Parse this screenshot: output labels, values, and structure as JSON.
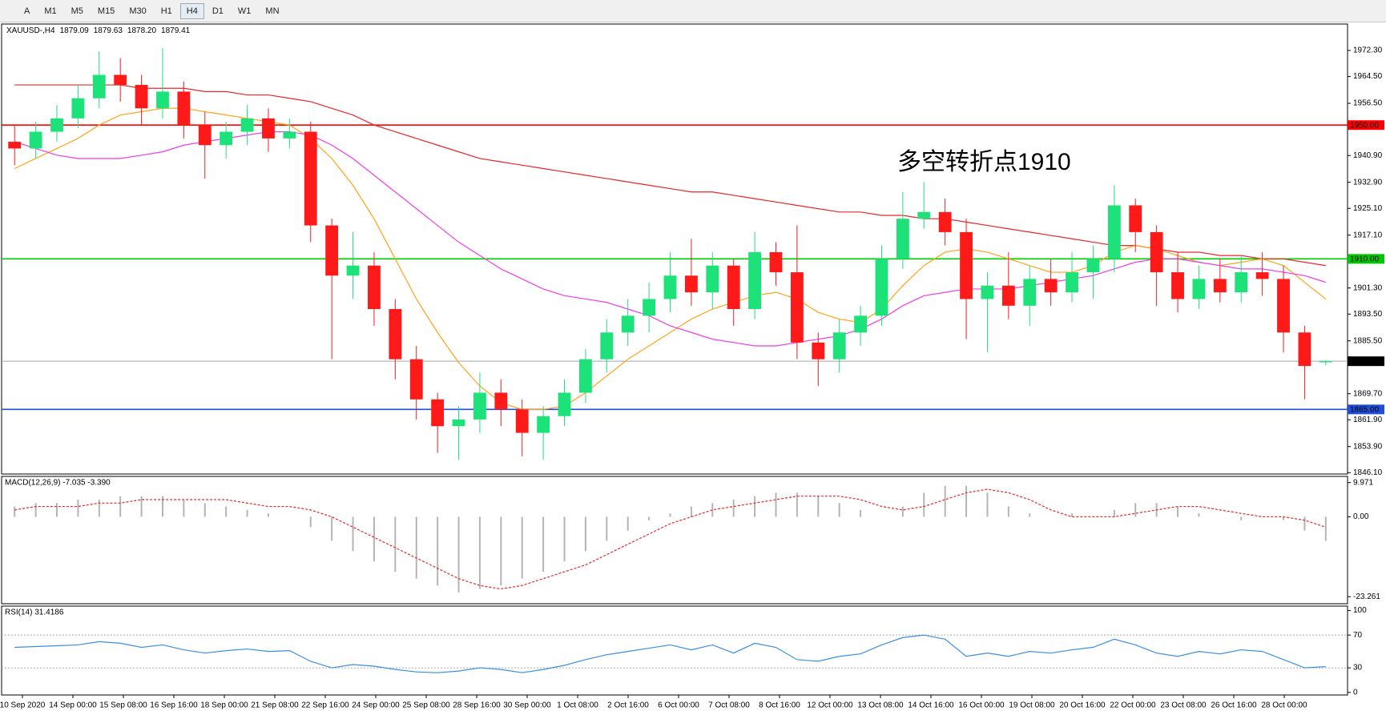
{
  "toolbar": {
    "buttons": [
      "A",
      "M1",
      "M5",
      "M15",
      "M30",
      "H1",
      "H4",
      "D1",
      "W1",
      "MN"
    ]
  },
  "time_axis": {
    "labels": [
      "10 Sep 2020",
      "14 Sep 00:00",
      "15 Sep 08:00",
      "16 Sep 16:00",
      "18 Sep 00:00",
      "21 Sep 08:00",
      "22 Sep 16:00",
      "24 Sep 00:00",
      "25 Sep 08:00",
      "28 Sep 16:00",
      "30 Sep 00:00",
      "1 Oct 08:00",
      "2 Oct 16:00",
      "6 Oct 00:00",
      "7 Oct 08:00",
      "8 Oct 16:00",
      "12 Oct 00:00",
      "13 Oct 08:00",
      "14 Oct 16:00",
      "16 Oct 00:00",
      "19 Oct 08:00",
      "20 Oct 16:00",
      "22 Oct 00:00",
      "23 Oct 08:00",
      "26 Oct 16:00",
      "28 Oct 00:00"
    ]
  },
  "chart_data": [
    {
      "type": "candlestick",
      "title": "XAUUSD-,H4",
      "header_values": [
        {
          "value": 1879.09,
          "label": "1879.09"
        },
        {
          "value": 1879.63,
          "label": "1879.63"
        },
        {
          "value": 1878.2,
          "label": "1878.20"
        },
        {
          "value": 1879.41,
          "label": "1879.41"
        }
      ],
      "annotation": "多空转折点1910",
      "annotation_color": "#e8262a",
      "up_color": "#1de27a",
      "down_color": "#ff1a1a",
      "open": [
        1945,
        1943,
        1948,
        1952,
        1958,
        1965,
        1962,
        1955,
        1960,
        1950,
        1944,
        1948,
        1952,
        1946,
        1948,
        1920,
        1905,
        1908,
        1895,
        1880,
        1868,
        1860,
        1862,
        1870,
        1865,
        1858,
        1863,
        1870,
        1880,
        1888,
        1893,
        1898,
        1905,
        1900,
        1908,
        1895,
        1912,
        1906,
        1885,
        1880,
        1888,
        1893,
        1910,
        1922,
        1924,
        1918,
        1898,
        1902,
        1896,
        1904,
        1900,
        1906,
        1910,
        1926,
        1918,
        1906,
        1898,
        1904,
        1900,
        1906,
        1904,
        1888,
        1879.09
      ],
      "high": [
        1950,
        1951,
        1956,
        1962,
        1972,
        1970,
        1965,
        1973,
        1963,
        1954,
        1951,
        1956,
        1955,
        1952,
        1951,
        1922,
        1918,
        1912,
        1898,
        1884,
        1870,
        1866,
        1876,
        1874,
        1868,
        1866,
        1874,
        1883,
        1892,
        1898,
        1903,
        1912,
        1916,
        1912,
        1910,
        1918,
        1915,
        1920,
        1888,
        1892,
        1896,
        1914,
        1930,
        1933,
        1928,
        1922,
        1906,
        1912,
        1908,
        1910,
        1912,
        1914,
        1932,
        1928,
        1920,
        1912,
        1908,
        1910,
        1911,
        1912,
        1908,
        1890,
        1879.63
      ],
      "low": [
        1938,
        1940,
        1945,
        1949,
        1955,
        1957,
        1950,
        1952,
        1946,
        1934,
        1940,
        1944,
        1942,
        1943,
        1915,
        1880,
        1898,
        1890,
        1874,
        1862,
        1852,
        1850,
        1858,
        1860,
        1851,
        1850,
        1860,
        1867,
        1876,
        1884,
        1888,
        1894,
        1896,
        1895,
        1890,
        1892,
        1902,
        1880,
        1872,
        1876,
        1884,
        1890,
        1907,
        1919,
        1914,
        1886,
        1882,
        1892,
        1890,
        1896,
        1897,
        1898,
        1906,
        1912,
        1896,
        1894,
        1895,
        1897,
        1897,
        1899,
        1882,
        1868,
        1878.2
      ],
      "close": [
        1943,
        1948,
        1952,
        1958,
        1965,
        1962,
        1955,
        1960,
        1950,
        1944,
        1948,
        1952,
        1946,
        1948,
        1920,
        1905,
        1908,
        1895,
        1880,
        1868,
        1860,
        1862,
        1870,
        1865,
        1858,
        1863,
        1870,
        1880,
        1888,
        1893,
        1898,
        1905,
        1900,
        1908,
        1895,
        1912,
        1906,
        1885,
        1880,
        1888,
        1893,
        1910,
        1922,
        1924,
        1918,
        1898,
        1902,
        1896,
        1904,
        1900,
        1906,
        1910,
        1926,
        1918,
        1906,
        1898,
        1904,
        1900,
        1906,
        1904,
        1888,
        1878,
        1879.41
      ],
      "moving_averages": [
        {
          "color": "#e8262a",
          "values": [
            1962,
            1962,
            1962,
            1962,
            1962,
            1962,
            1961,
            1961,
            1961,
            1960,
            1960,
            1959,
            1959,
            1958,
            1957,
            1955,
            1953,
            1950,
            1948,
            1946,
            1944,
            1942,
            1940,
            1939,
            1938,
            1937,
            1936,
            1935,
            1934,
            1933,
            1932,
            1931,
            1930,
            1930,
            1929,
            1928,
            1927,
            1926,
            1925,
            1924,
            1924,
            1923,
            1923,
            1922,
            1922,
            1921,
            1920,
            1919,
            1918,
            1917,
            1916,
            1915,
            1914,
            1914,
            1913,
            1912,
            1912,
            1911,
            1911,
            1910,
            1910,
            1909,
            1908
          ]
        },
        {
          "color": "#ffa31a",
          "values": [
            1937,
            1940,
            1943,
            1946,
            1950,
            1953,
            1954,
            1955,
            1955,
            1954,
            1953,
            1952,
            1951,
            1950,
            1946,
            1940,
            1932,
            1922,
            1910,
            1898,
            1888,
            1879,
            1872,
            1867,
            1865,
            1865,
            1866,
            1870,
            1875,
            1880,
            1884,
            1888,
            1892,
            1895,
            1897,
            1899,
            1900,
            1898,
            1894,
            1892,
            1891,
            1895,
            1902,
            1908,
            1912,
            1913,
            1912,
            1910,
            1908,
            1906,
            1906,
            1908,
            1912,
            1914,
            1913,
            1911,
            1909,
            1908,
            1909,
            1910,
            1908,
            1903,
            1898
          ]
        },
        {
          "color": "#ee3ee6",
          "values": [
            1945,
            1943,
            1941,
            1940,
            1940,
            1940,
            1941,
            1942,
            1944,
            1945,
            1946,
            1947,
            1948,
            1948,
            1947,
            1944,
            1940,
            1935,
            1930,
            1925,
            1920,
            1915,
            1911,
            1907,
            1904,
            1901,
            1899,
            1898,
            1897,
            1895,
            1893,
            1890,
            1888,
            1886,
            1885,
            1884,
            1884,
            1885,
            1886,
            1887,
            1889,
            1892,
            1896,
            1899,
            1900,
            1901,
            1901,
            1901,
            1902,
            1903,
            1904,
            1905,
            1907,
            1909,
            1910,
            1910,
            1909,
            1908,
            1907,
            1907,
            1906,
            1905,
            1903
          ]
        }
      ],
      "levels": [
        {
          "value": 1950,
          "label": "1950.00",
          "color": "#ff0000",
          "text_color": "#ffffff"
        },
        {
          "value": 1910,
          "label": "1910.00",
          "color": "#00c800",
          "text_color": "#000000"
        },
        {
          "value": 1865,
          "label": "1865.00",
          "color": "#1f4fd8",
          "text_color": "#ffffff"
        },
        {
          "value": 1879.41,
          "label": "1879.41",
          "color": "#a0a8b0",
          "text_color": "#ffffff"
        }
      ],
      "ylim": [
        1845.7,
        1980.2
      ],
      "yticks": [
        {
          "value": 1972.3,
          "label": "1972.30"
        },
        {
          "value": 1964.5,
          "label": "1964.50"
        },
        {
          "value": 1956.5,
          "label": "1956.50"
        },
        {
          "value": 1940.9,
          "label": "1940.90"
        },
        {
          "value": 1932.9,
          "label": "1932.90"
        },
        {
          "value": 1925.1,
          "label": "1925.10"
        },
        {
          "value": 1917.1,
          "label": "1917.10"
        },
        {
          "value": 1901.3,
          "label": "1901.30"
        },
        {
          "value": 1893.5,
          "label": "1893.50"
        },
        {
          "value": 1885.5,
          "label": "1885.50"
        },
        {
          "value": 1869.7,
          "label": "1869.70"
        },
        {
          "value": 1861.9,
          "label": "1861.90"
        },
        {
          "value": 1853.9,
          "label": "1853.90"
        },
        {
          "value": 1846.1,
          "label": "1846.10"
        }
      ]
    },
    {
      "type": "macd",
      "title": "MACD(12,26,9) -7.035 -3.390",
      "color": "#b4b4b4",
      "signal_color": "#e8262a",
      "histogram": [
        3,
        4,
        4,
        5,
        5,
        6,
        6,
        6,
        5,
        4,
        3,
        2,
        1,
        0,
        -3,
        -7,
        -10,
        -13,
        -16,
        -18,
        -20,
        -22,
        -21,
        -20,
        -18,
        -16,
        -13,
        -10,
        -7,
        -4,
        -1,
        1,
        3,
        4,
        5,
        6,
        7,
        7,
        6,
        4,
        2,
        0,
        3,
        7,
        9,
        9,
        7,
        3,
        1,
        0,
        1,
        0,
        2,
        4,
        4,
        3,
        1,
        0,
        -1,
        0,
        -1,
        -4,
        -7
      ],
      "signal": [
        2,
        3,
        3,
        3,
        4,
        4,
        5,
        5,
        5,
        5,
        5,
        4,
        3,
        3,
        2,
        0,
        -3,
        -6,
        -9,
        -12,
        -15,
        -18,
        -20,
        -21,
        -20,
        -18,
        -16,
        -14,
        -11,
        -8,
        -5,
        -2,
        0,
        2,
        3,
        4,
        5,
        6,
        6,
        6,
        5,
        3,
        2,
        3,
        5,
        7,
        8,
        7,
        5,
        2,
        0,
        0,
        0,
        1,
        2,
        3,
        3,
        2,
        1,
        0,
        0,
        -1,
        -3
      ],
      "ylim": [
        -25.3,
        11.76
      ],
      "yticks": [
        9.971,
        {
          "value": 0,
          "label": "0.00"
        },
        -23.261
      ]
    },
    {
      "type": "rsi",
      "title": "RSI(14) 31.4186",
      "color": "#3a8ee6",
      "values": [
        55,
        56,
        57,
        58,
        62,
        60,
        55,
        58,
        52,
        48,
        51,
        53,
        50,
        51,
        38,
        30,
        34,
        32,
        28,
        25,
        24,
        26,
        30,
        28,
        24,
        28,
        33,
        40,
        46,
        50,
        54,
        58,
        52,
        58,
        48,
        60,
        55,
        40,
        38,
        44,
        47,
        58,
        67,
        70,
        65,
        44,
        48,
        44,
        50,
        48,
        52,
        55,
        65,
        58,
        48,
        44,
        50,
        47,
        52,
        50,
        40,
        30,
        31.4186
      ],
      "levels": [
        70,
        30
      ],
      "ylim": [
        -3.2,
        105.4
      ],
      "yticks": [
        100,
        70,
        30,
        0
      ]
    }
  ]
}
